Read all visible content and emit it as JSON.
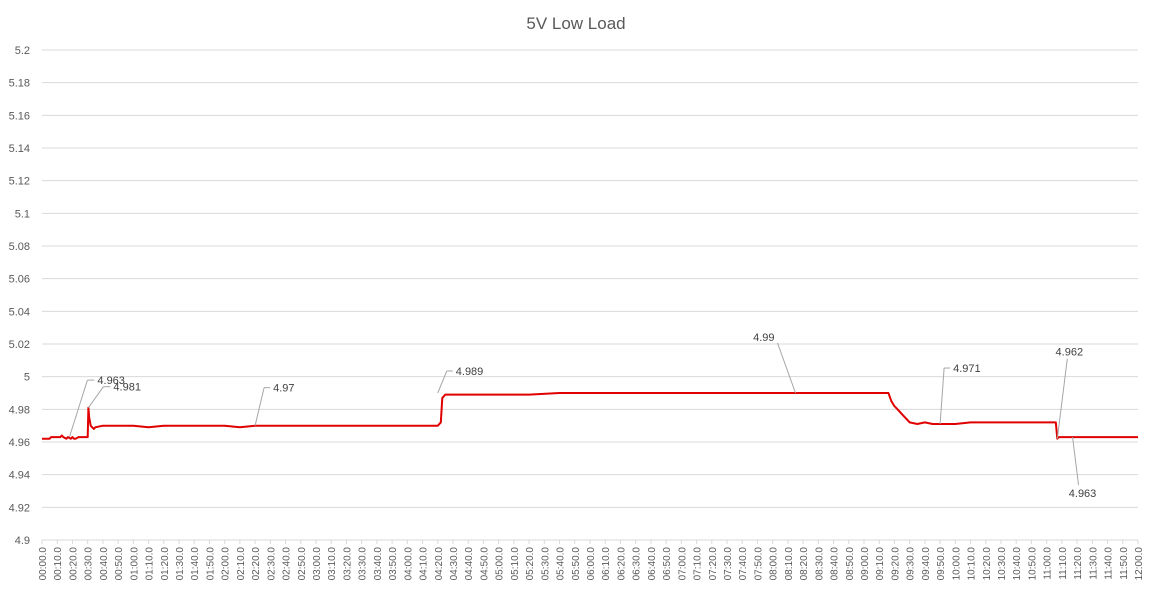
{
  "chart_data": {
    "type": "line",
    "title": "5V Low Load",
    "xlabel": "",
    "ylabel": "",
    "ylim": [
      4.9,
      5.2
    ],
    "y_ticks": [
      "4.9",
      "4.92",
      "4.94",
      "4.96",
      "4.98",
      "5",
      "5.02",
      "5.04",
      "5.06",
      "5.08",
      "5.1",
      "5.12",
      "5.14",
      "5.16",
      "5.18",
      "5.2"
    ],
    "x_tick_labels": [
      "00:00.0",
      "00:10.0",
      "00:20.0",
      "00:30.0",
      "00:40.0",
      "00:50.0",
      "01:00.0",
      "01:10.0",
      "01:20.0",
      "01:30.0",
      "01:40.0",
      "01:50.0",
      "02:00.0",
      "02:10.0",
      "02:20.0",
      "02:30.0",
      "02:40.0",
      "02:50.0",
      "03:00.0",
      "03:10.0",
      "03:20.0",
      "03:30.0",
      "03:40.0",
      "03:50.0",
      "04:00.0",
      "04:10.0",
      "04:20.0",
      "04:30.0",
      "04:40.0",
      "04:50.0",
      "05:00.0",
      "05:10.0",
      "05:20.0",
      "05:30.0",
      "05:40.0",
      "05:50.0",
      "06:00.0",
      "06:10.0",
      "06:20.0",
      "06:30.0",
      "06:40.0",
      "06:50.0",
      "07:00.0",
      "07:10.0",
      "07:20.0",
      "07:30.0",
      "07:40.0",
      "07:50.0",
      "08:00.0",
      "08:10.0",
      "08:20.0",
      "08:30.0",
      "08:40.0",
      "08:50.0",
      "09:00.0",
      "09:10.0",
      "09:20.0",
      "09:30.0",
      "09:40.0",
      "09:50.0",
      "10:00.0",
      "10:10.0",
      "10:20.0",
      "10:30.0",
      "10:40.0",
      "10:50.0",
      "11:00.0",
      "11:10.0",
      "11:20.0",
      "11:30.0",
      "11:40.0",
      "11:50.0",
      "12:00.0"
    ],
    "grid": true,
    "legend": "none",
    "series": [
      {
        "color": "#e00000",
        "x": [
          0,
          5,
          6,
          7,
          12,
          13,
          14,
          16,
          17,
          19,
          20,
          21,
          22,
          24,
          25,
          26,
          29,
          30,
          30.5,
          31,
          32,
          33,
          34,
          35,
          40,
          50,
          60,
          70,
          80,
          90,
          100,
          110,
          120,
          130,
          140,
          150,
          160,
          170,
          180,
          190,
          200,
          205,
          210,
          240,
          260,
          262,
          263,
          265,
          280,
          300,
          320,
          340,
          360,
          380,
          400,
          420,
          440,
          460,
          480,
          500,
          520,
          540,
          550,
          554,
          556,
          558,
          560,
          562,
          564,
          566,
          568,
          570,
          575,
          580,
          585,
          590,
          600,
          610,
          620,
          630,
          640,
          650,
          660,
          666,
          667,
          668,
          670,
          675,
          680,
          690,
          700,
          710,
          720
        ],
        "y": [
          4.962,
          4.962,
          4.963,
          4.963,
          4.963,
          4.964,
          4.963,
          4.962,
          4.963,
          4.962,
          4.963,
          4.962,
          4.962,
          4.963,
          4.963,
          4.963,
          4.963,
          4.963,
          4.981,
          4.975,
          4.97,
          4.969,
          4.968,
          4.969,
          4.97,
          4.97,
          4.97,
          4.969,
          4.97,
          4.97,
          4.97,
          4.97,
          4.97,
          4.969,
          4.97,
          4.97,
          4.97,
          4.97,
          4.97,
          4.97,
          4.97,
          4.97,
          4.97,
          4.97,
          4.97,
          4.972,
          4.987,
          4.989,
          4.989,
          4.989,
          4.989,
          4.99,
          4.99,
          4.99,
          4.99,
          4.99,
          4.99,
          4.99,
          4.99,
          4.99,
          4.99,
          4.99,
          4.99,
          4.99,
          4.99,
          4.985,
          4.982,
          4.98,
          4.978,
          4.976,
          4.974,
          4.972,
          4.971,
          4.972,
          4.971,
          4.971,
          4.971,
          4.972,
          4.972,
          4.972,
          4.972,
          4.972,
          4.972,
          4.972,
          4.962,
          4.963,
          4.963,
          4.963,
          4.963,
          4.963,
          4.963,
          4.963,
          4.963
        ]
      }
    ],
    "annotations": [
      "4.963",
      "4.981",
      "4.97",
      "4.989",
      "4.99",
      "4.971",
      "4.962",
      "4.963"
    ]
  }
}
